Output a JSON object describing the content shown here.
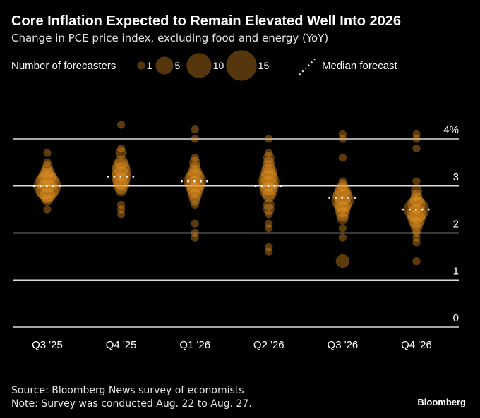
{
  "chart_data": {
    "type": "scatter",
    "title": "Core Inflation Expected to Remain Elevated Well Into 2026",
    "subtitle": "Change in PCE price index, excluding food and energy (YoY)",
    "size_legend_label": "Number of forecasters",
    "size_legend_values": [
      "1",
      "5",
      "10",
      "15"
    ],
    "median_legend_label": "Median forecast",
    "y_ticks": [
      "0",
      "1",
      "2",
      "3",
      "4%"
    ],
    "ylim": [
      0,
      4.5
    ],
    "grid": true,
    "bubble_color": "#f59a23",
    "median_color": "#ffffff",
    "categories": [
      "Q3 '25",
      "Q4 '25",
      "Q1 '26",
      "Q2 '26",
      "Q3 '26",
      "Q4 '26"
    ],
    "medians": [
      3.0,
      3.2,
      3.1,
      3.0,
      2.75,
      2.5
    ],
    "forecasts": [
      [
        [
          3.7,
          1
        ],
        [
          3.5,
          1
        ],
        [
          3.4,
          2
        ],
        [
          3.3,
          3
        ],
        [
          3.2,
          5
        ],
        [
          3.1,
          8
        ],
        [
          3.0,
          12
        ],
        [
          2.9,
          8
        ],
        [
          2.8,
          4
        ],
        [
          2.7,
          2
        ],
        [
          2.5,
          1
        ]
      ],
      [
        [
          4.3,
          1
        ],
        [
          3.8,
          1
        ],
        [
          3.7,
          2
        ],
        [
          3.5,
          3
        ],
        [
          3.4,
          5
        ],
        [
          3.3,
          6
        ],
        [
          3.2,
          6
        ],
        [
          3.1,
          5
        ],
        [
          3.0,
          4
        ],
        [
          2.9,
          2
        ],
        [
          2.6,
          1
        ],
        [
          2.5,
          1
        ],
        [
          2.4,
          1
        ]
      ],
      [
        [
          4.2,
          1
        ],
        [
          4.0,
          1
        ],
        [
          3.6,
          1
        ],
        [
          3.5,
          2
        ],
        [
          3.4,
          2
        ],
        [
          3.3,
          3
        ],
        [
          3.2,
          5
        ],
        [
          3.1,
          8
        ],
        [
          3.0,
          6
        ],
        [
          2.9,
          4
        ],
        [
          2.8,
          3
        ],
        [
          2.7,
          2
        ],
        [
          2.6,
          1
        ],
        [
          2.2,
          1
        ],
        [
          2.0,
          1
        ],
        [
          1.9,
          1
        ]
      ],
      [
        [
          4.0,
          1
        ],
        [
          3.7,
          1
        ],
        [
          3.6,
          2
        ],
        [
          3.5,
          2
        ],
        [
          3.4,
          3
        ],
        [
          3.3,
          4
        ],
        [
          3.2,
          5
        ],
        [
          3.1,
          7
        ],
        [
          3.0,
          6
        ],
        [
          2.9,
          5
        ],
        [
          2.8,
          3
        ],
        [
          2.6,
          2
        ],
        [
          2.5,
          2
        ],
        [
          2.4,
          1
        ],
        [
          2.2,
          1
        ],
        [
          2.1,
          1
        ],
        [
          1.7,
          1
        ],
        [
          1.6,
          1
        ]
      ],
      [
        [
          4.1,
          1
        ],
        [
          4.0,
          1
        ],
        [
          3.6,
          1
        ],
        [
          3.1,
          1
        ],
        [
          3.0,
          2
        ],
        [
          2.9,
          4
        ],
        [
          2.8,
          6
        ],
        [
          2.7,
          8
        ],
        [
          2.6,
          5
        ],
        [
          2.5,
          4
        ],
        [
          2.4,
          3
        ],
        [
          2.3,
          2
        ],
        [
          2.1,
          1
        ],
        [
          1.9,
          1
        ],
        [
          1.4,
          3
        ]
      ],
      [
        [
          4.1,
          1
        ],
        [
          4.0,
          1
        ],
        [
          3.8,
          1
        ],
        [
          3.1,
          1
        ],
        [
          2.9,
          2
        ],
        [
          2.8,
          2
        ],
        [
          2.7,
          3
        ],
        [
          2.6,
          5
        ],
        [
          2.5,
          10
        ],
        [
          2.4,
          6
        ],
        [
          2.3,
          5
        ],
        [
          2.2,
          3
        ],
        [
          2.1,
          2
        ],
        [
          2.0,
          1
        ],
        [
          1.9,
          1
        ],
        [
          1.8,
          1
        ],
        [
          1.4,
          1
        ]
      ]
    ]
  },
  "footer": {
    "source": "Source: Bloomberg News survey of economists",
    "note": "Note: Survey was conducted Aug. 22 to Aug. 27.",
    "brand": "Bloomberg"
  }
}
